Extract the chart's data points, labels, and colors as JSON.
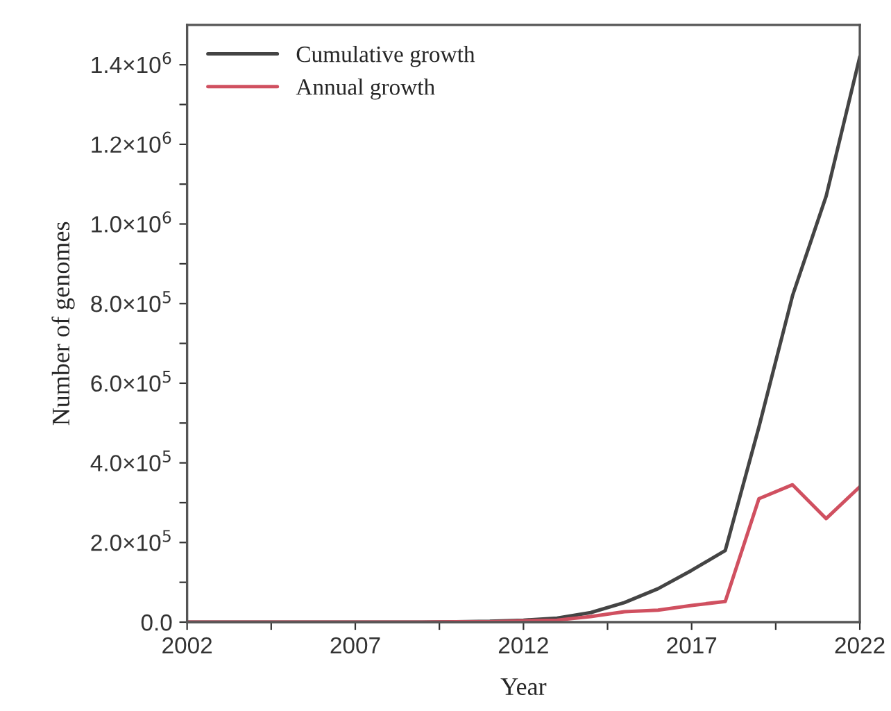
{
  "chart_data": {
    "type": "line",
    "xlabel": "Year",
    "ylabel": "Number of genomes",
    "x": [
      2002,
      2003,
      2004,
      2005,
      2006,
      2007,
      2008,
      2009,
      2010,
      2011,
      2012,
      2013,
      2014,
      2015,
      2016,
      2017,
      2018,
      2019,
      2020,
      2021,
      2022
    ],
    "series": [
      {
        "name": "Cumulative growth",
        "color": "#444444",
        "values": [
          0,
          0,
          0,
          0,
          0,
          0,
          0,
          0,
          1000,
          2000,
          5000,
          10000,
          24000,
          49000,
          84000,
          130000,
          180000,
          490000,
          820000,
          1070000,
          1420000
        ]
      },
      {
        "name": "Annual growth",
        "color": "#d05060",
        "values": [
          0,
          0,
          0,
          0,
          0,
          0,
          0,
          0,
          1000,
          1000,
          3000,
          5000,
          14000,
          26000,
          30000,
          42000,
          52000,
          310000,
          345000,
          260000,
          340000
        ]
      }
    ],
    "xlim": [
      2002,
      2022
    ],
    "xticks": [
      2002,
      {
        "value": 2004.5,
        "label": null
      },
      2007,
      {
        "value": 2009.5,
        "label": null
      },
      2012,
      {
        "value": 2014.5,
        "label": null
      },
      2017,
      {
        "value": 2019.5,
        "label": null
      },
      2022
    ],
    "ylim": [
      0,
      1500000
    ],
    "yticks": [
      {
        "value": 0,
        "label": "0.0"
      },
      {
        "value": 100000,
        "label": null
      },
      {
        "value": 200000,
        "label": "2.0×10$^{5}$"
      },
      {
        "value": 300000,
        "label": null
      },
      {
        "value": 400000,
        "label": "4.0×10$^{5}$"
      },
      {
        "value": 500000,
        "label": null
      },
      {
        "value": 600000,
        "label": "6.0×10$^{5}$"
      },
      {
        "value": 700000,
        "label": null
      },
      {
        "value": 800000,
        "label": "8.0×10$^{5}$"
      },
      {
        "value": 900000,
        "label": null
      },
      {
        "value": 1000000,
        "label": "1.0×10$^{6}$"
      },
      {
        "value": 1100000,
        "label": null
      },
      {
        "value": 1200000,
        "label": "1.2×10$^{6}$"
      },
      {
        "value": 1300000,
        "label": null
      },
      {
        "value": 1400000,
        "label": "1.4×10$^{6}$"
      }
    ],
    "grid": false,
    "legend": "top left",
    "line_style": "solid",
    "marker": "none"
  }
}
